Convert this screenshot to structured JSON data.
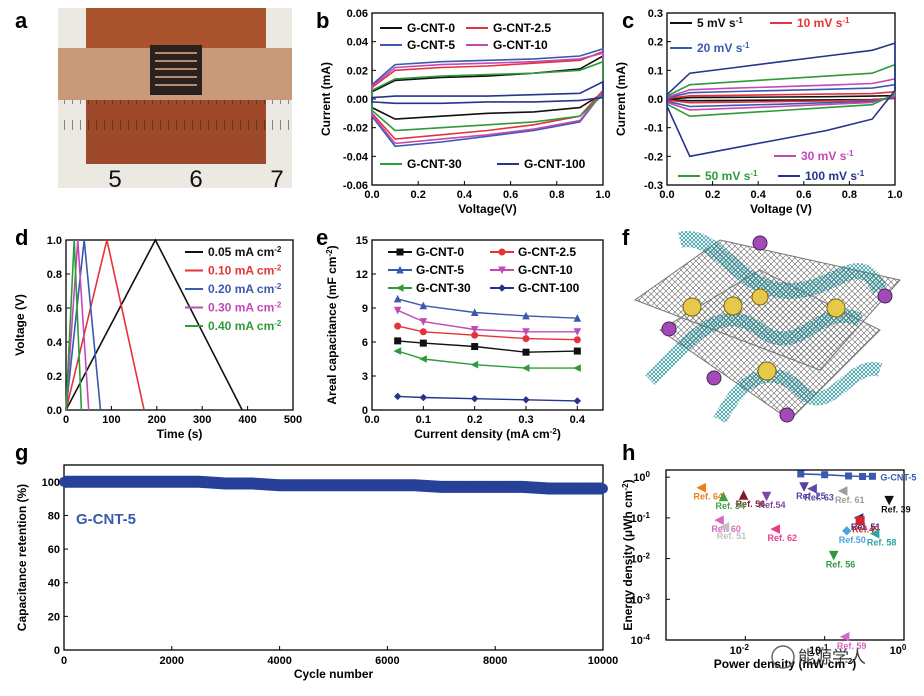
{
  "panel_labels": [
    "a",
    "b",
    "c",
    "d",
    "e",
    "f",
    "g",
    "h"
  ],
  "photo": {
    "ruler_labels": [
      "5",
      "6",
      "7"
    ]
  },
  "watermark": {
    "text": "能源学人"
  },
  "chart_data": [
    {
      "id": "b",
      "type": "line",
      "subtype": "cyclic-voltammetry",
      "xlabel": "Voltage(V)",
      "ylabel": "Current (mA)",
      "xlim": [
        0.0,
        1.0
      ],
      "ylim": [
        -0.06,
        0.06
      ],
      "xticks": [
        "0.0",
        "0.2",
        "0.4",
        "0.6",
        "0.8",
        "1.0"
      ],
      "yticks": [
        "-0.06",
        "-0.04",
        "-0.02",
        "0.00",
        "0.02",
        "0.04",
        "0.06"
      ],
      "legend": [
        {
          "name": "G-CNT-0",
          "color": "#111111"
        },
        {
          "name": "G-CNT-2.5",
          "color": "#e5333a"
        },
        {
          "name": "G-CNT-5",
          "color": "#3a59b0"
        },
        {
          "name": "G-CNT-10",
          "color": "#c449b6"
        },
        {
          "name": "G-CNT-30",
          "color": "#2e9b3a"
        },
        {
          "name": "G-CNT-100",
          "color": "#27338f"
        }
      ],
      "series": [
        {
          "name": "G-CNT-0",
          "color": "#111111",
          "upper": [
            0.005,
            0.013,
            0.015,
            0.016,
            0.018,
            0.021,
            0.03
          ],
          "lower": [
            -0.006,
            -0.014,
            -0.012,
            -0.01,
            -0.009,
            -0.006,
            0.004
          ]
        },
        {
          "name": "G-CNT-2.5",
          "color": "#e5333a",
          "upper": [
            0.008,
            0.02,
            0.022,
            0.023,
            0.025,
            0.027,
            0.033
          ],
          "lower": [
            -0.01,
            -0.028,
            -0.025,
            -0.022,
            -0.018,
            -0.012,
            0.006
          ]
        },
        {
          "name": "G-CNT-5",
          "color": "#3a59b0",
          "upper": [
            0.01,
            0.024,
            0.026,
            0.027,
            0.028,
            0.03,
            0.035
          ],
          "lower": [
            -0.012,
            -0.033,
            -0.03,
            -0.026,
            -0.022,
            -0.016,
            0.005
          ]
        },
        {
          "name": "G-CNT-10",
          "color": "#c449b6",
          "upper": [
            0.009,
            0.022,
            0.024,
            0.025,
            0.026,
            0.028,
            0.032
          ],
          "lower": [
            -0.011,
            -0.031,
            -0.028,
            -0.025,
            -0.021,
            -0.015,
            0.005
          ]
        },
        {
          "name": "G-CNT-30",
          "color": "#2e9b3a",
          "upper": [
            0.006,
            0.014,
            0.016,
            0.017,
            0.018,
            0.02,
            0.026
          ],
          "lower": [
            -0.008,
            -0.022,
            -0.02,
            -0.018,
            -0.016,
            -0.012,
            0.003
          ]
        },
        {
          "name": "G-CNT-100",
          "color": "#27338f",
          "upper": [
            0.001,
            0.002,
            0.002,
            0.002,
            0.003,
            0.004,
            0.012
          ],
          "lower": [
            -0.002,
            -0.003,
            -0.003,
            -0.002,
            -0.002,
            -0.001,
            0.001
          ]
        }
      ],
      "xpts": [
        0.0,
        0.1,
        0.3,
        0.5,
        0.7,
        0.9,
        1.0
      ]
    },
    {
      "id": "c",
      "type": "line",
      "subtype": "cyclic-voltammetry",
      "xlabel": "Voltage (V)",
      "ylabel": "Current (mA)",
      "xlim": [
        0.0,
        1.0
      ],
      "ylim": [
        -0.3,
        0.3
      ],
      "xticks": [
        "0.0",
        "0.2",
        "0.4",
        "0.6",
        "0.8",
        "1.0"
      ],
      "yticks": [
        "-0.3",
        "-0.2",
        "-0.1",
        "0.0",
        "0.1",
        "0.2",
        "0.3"
      ],
      "legend": [
        {
          "name": "5",
          "unit": "mV s",
          "sup": "-1",
          "color": "#111111"
        },
        {
          "name": "10",
          "unit": "mV s",
          "sup": "-1",
          "color": "#e5333a"
        },
        {
          "name": "20",
          "unit": "mV s",
          "sup": "-1",
          "color": "#3a59b0"
        },
        {
          "name": "30",
          "unit": "mV s",
          "sup": "-1",
          "color": "#c449b6"
        },
        {
          "name": "50",
          "unit": "mV s",
          "sup": "-1",
          "color": "#2e9b3a"
        },
        {
          "name": "100",
          "unit": "mV s",
          "sup": "-1",
          "color": "#27338f"
        }
      ],
      "series": [
        {
          "name": "5",
          "color": "#111111",
          "upper": [
            0.0,
            0.005,
            0.006,
            0.007,
            0.008,
            0.01,
            0.012
          ],
          "lower": [
            -0.002,
            -0.006,
            -0.005,
            -0.004,
            -0.003,
            -0.002,
            0.002
          ]
        },
        {
          "name": "10",
          "color": "#e5333a",
          "upper": [
            0.002,
            0.011,
            0.013,
            0.015,
            0.017,
            0.019,
            0.025
          ],
          "lower": [
            -0.004,
            -0.013,
            -0.011,
            -0.009,
            -0.007,
            -0.004,
            0.004
          ]
        },
        {
          "name": "20",
          "color": "#3a59b0",
          "upper": [
            0.004,
            0.022,
            0.026,
            0.03,
            0.034,
            0.038,
            0.05
          ],
          "lower": [
            -0.008,
            -0.026,
            -0.022,
            -0.018,
            -0.013,
            -0.008,
            0.008
          ]
        },
        {
          "name": "30",
          "color": "#c449b6",
          "upper": [
            0.006,
            0.032,
            0.038,
            0.043,
            0.048,
            0.054,
            0.07
          ],
          "lower": [
            -0.012,
            -0.038,
            -0.032,
            -0.026,
            -0.019,
            -0.012,
            0.012
          ]
        },
        {
          "name": "50",
          "color": "#2e9b3a",
          "upper": [
            0.01,
            0.05,
            0.06,
            0.07,
            0.08,
            0.09,
            0.12
          ],
          "lower": [
            -0.018,
            -0.06,
            -0.05,
            -0.04,
            -0.03,
            -0.02,
            0.018
          ]
        },
        {
          "name": "100",
          "color": "#27338f",
          "upper": [
            0.015,
            0.09,
            0.11,
            0.13,
            0.15,
            0.17,
            0.195
          ],
          "lower": [
            -0.025,
            -0.2,
            -0.17,
            -0.14,
            -0.11,
            -0.07,
            0.03
          ]
        }
      ],
      "xpts": [
        0.0,
        0.1,
        0.3,
        0.5,
        0.7,
        0.9,
        1.0
      ]
    },
    {
      "id": "d",
      "type": "line",
      "subtype": "galvanostatic-charge-discharge",
      "xlabel": "Time (s)",
      "ylabel": "Voltage (V)",
      "xlim": [
        0,
        500
      ],
      "ylim": [
        0.0,
        1.0
      ],
      "xticks": [
        "0",
        "100",
        "200",
        "300",
        "400",
        "500"
      ],
      "yticks": [
        "0.0",
        "0.2",
        "0.4",
        "0.6",
        "0.8",
        "1.0"
      ],
      "legend": [
        {
          "name": "0.05",
          "unit": "mA cm",
          "sup": "-2",
          "color": "#111111"
        },
        {
          "name": "0.10",
          "unit": "mA cm",
          "sup": "-2",
          "color": "#e5333a"
        },
        {
          "name": "0.20",
          "unit": "mA cm",
          "sup": "-2",
          "color": "#3a59b0"
        },
        {
          "name": "0.30",
          "unit": "mA cm",
          "sup": "-2",
          "color": "#c449b6"
        },
        {
          "name": "0.40",
          "unit": "mA cm",
          "sup": "-2",
          "color": "#2e9b3a"
        }
      ],
      "series": [
        {
          "name": "0.05",
          "color": "#111111",
          "x": [
            0,
            197,
            388
          ],
          "y": [
            0.0,
            1.0,
            0.0
          ]
        },
        {
          "name": "0.10",
          "color": "#e5333a",
          "x": [
            0,
            90,
            172
          ],
          "y": [
            0.0,
            1.0,
            0.0
          ]
        },
        {
          "name": "0.20",
          "color": "#3a59b0",
          "x": [
            0,
            40,
            76
          ],
          "y": [
            0.0,
            1.0,
            0.0
          ]
        },
        {
          "name": "0.30",
          "color": "#c449b6",
          "x": [
            0,
            26,
            50
          ],
          "y": [
            0.0,
            1.0,
            0.0
          ]
        },
        {
          "name": "0.40",
          "color": "#2e9b3a",
          "x": [
            0,
            18,
            34
          ],
          "y": [
            0.0,
            1.0,
            0.0
          ]
        }
      ]
    },
    {
      "id": "e",
      "type": "line",
      "xlabel": "Current density (mA cm",
      "xlabel_sup": "-2",
      "xlabel_end": ")",
      "ylabel": "Areal capacitance (mF cm",
      "ylabel_sup": "-2",
      "ylabel_end": ")",
      "xlim": [
        0.0,
        0.45
      ],
      "ylim": [
        0,
        15
      ],
      "xticks": [
        "0.0",
        "0.1",
        "0.2",
        "0.3",
        "0.4"
      ],
      "yticks": [
        "0",
        "3",
        "6",
        "9",
        "12",
        "15"
      ],
      "x": [
        0.05,
        0.1,
        0.2,
        0.3,
        0.4
      ],
      "series": [
        {
          "name": "G-CNT-0",
          "color": "#111111",
          "marker": "square",
          "values": [
            6.1,
            5.9,
            5.6,
            5.1,
            5.2
          ]
        },
        {
          "name": "G-CNT-2.5",
          "color": "#e5333a",
          "marker": "circle",
          "values": [
            7.4,
            6.9,
            6.6,
            6.3,
            6.2
          ]
        },
        {
          "name": "G-CNT-5",
          "color": "#3a59b0",
          "marker": "triangle-up",
          "values": [
            9.8,
            9.2,
            8.6,
            8.3,
            8.1
          ]
        },
        {
          "name": "G-CNT-10",
          "color": "#c449b6",
          "marker": "triangle-down",
          "values": [
            8.8,
            7.8,
            7.1,
            6.9,
            6.9
          ]
        },
        {
          "name": "G-CNT-30",
          "color": "#2e9b3a",
          "marker": "triangle-left",
          "values": [
            5.2,
            4.5,
            4.0,
            3.7,
            3.7
          ]
        },
        {
          "name": "G-CNT-100",
          "color": "#27338f",
          "marker": "diamond",
          "values": [
            1.2,
            1.1,
            1.0,
            0.9,
            0.8
          ]
        }
      ]
    },
    {
      "id": "g",
      "type": "scatter",
      "xlabel": "Cycle number",
      "ylabel": "Capacitance retention (%)",
      "xlim": [
        0,
        10000
      ],
      "ylim": [
        0,
        110
      ],
      "xticks": [
        "0",
        "2000",
        "4000",
        "6000",
        "8000",
        "10000"
      ],
      "yticks": [
        "0",
        "20",
        "40",
        "60",
        "80",
        "100"
      ],
      "series_label": "G-CNT-5",
      "series": [
        {
          "name": "G-CNT-5",
          "color": "#27419a",
          "x": [
            0,
            500,
            1000,
            1500,
            2000,
            2500,
            3000,
            3500,
            4000,
            4500,
            5000,
            5500,
            6000,
            6500,
            7000,
            7500,
            8000,
            8500,
            9000,
            9500,
            10000
          ],
          "values": [
            100,
            100,
            100,
            100,
            100,
            100,
            99,
            99,
            98,
            98,
            98,
            98,
            98,
            98,
            97,
            97,
            97,
            97,
            96,
            96,
            96
          ]
        }
      ]
    },
    {
      "id": "h",
      "type": "scatter",
      "subtype": "ragone",
      "xlabel": "Power density (mW cm",
      "xlabel_sup": "-2",
      "xlabel_end": ")",
      "ylabel": "Energy density (μWh cm",
      "ylabel_sup": "-2",
      "ylabel_end": ")",
      "xscale": "log",
      "yscale": "log",
      "xlim": [
        0.001,
        1.0
      ],
      "ylim": [
        0.0001,
        1.5
      ],
      "xticks": [
        {
          "base": "10",
          "exp": "-2",
          "v": 0.01
        },
        {
          "base": "10",
          "exp": "-1",
          "v": 0.1
        },
        {
          "base": "10",
          "exp": "0",
          "v": 1
        }
      ],
      "yticks": [
        {
          "base": "10",
          "exp": "0",
          "v": 1
        },
        {
          "base": "10",
          "exp": "-1",
          "v": 0.1
        },
        {
          "base": "10",
          "exp": "-2",
          "v": 0.01
        },
        {
          "base": "10",
          "exp": "-3",
          "v": 0.001
        },
        {
          "base": "10",
          "exp": "-4",
          "v": 0.0001
        }
      ],
      "line_series": {
        "name": "G-CNT-5",
        "color": "#3a59b0",
        "x": [
          0.05,
          0.1,
          0.2,
          0.3,
          0.4
        ],
        "y": [
          1.2,
          1.15,
          1.07,
          1.04,
          1.05
        ]
      },
      "refs": [
        {
          "label": "Ref. 64",
          "x": 0.0028,
          "y": 0.55,
          "color": "#ef7d1a",
          "marker": "triangle-left"
        },
        {
          "label": "Ref. 56",
          "x": 0.0095,
          "y": 0.36,
          "color": "#7b1e22",
          "marker": "triangle-up"
        },
        {
          "label": "Ref. 34",
          "x": 0.0053,
          "y": 0.33,
          "color": "#43a047",
          "marker": "triangle-up"
        },
        {
          "label": "Ref. 25",
          "x": 0.055,
          "y": 0.58,
          "color": "#5b3fa0",
          "marker": "triangle-down"
        },
        {
          "label": "Ref.54",
          "x": 0.0185,
          "y": 0.34,
          "color": "#7d4aa0",
          "marker": "triangle-down"
        },
        {
          "label": "Ref. 63",
          "x": 0.07,
          "y": 0.52,
          "color": "#5e45a8",
          "marker": "triangle-left"
        },
        {
          "label": "Ref. 61",
          "x": 0.17,
          "y": 0.46,
          "color": "#9d9d9d",
          "marker": "triangle-left"
        },
        {
          "label": "Ref. 39",
          "x": 0.65,
          "y": 0.27,
          "color": "#111111",
          "marker": "triangle-down"
        },
        {
          "label": "Ref. 60",
          "x": 0.0047,
          "y": 0.088,
          "color": "#d667c2",
          "marker": "triangle-left"
        },
        {
          "label": "Ref. 51",
          "x": 0.27,
          "y": 0.1,
          "color": "#2a2f8c",
          "marker": "triangle-left"
        },
        {
          "label": "Ref.49",
          "x": 0.28,
          "y": 0.085,
          "color": "#d0262e",
          "marker": "square"
        },
        {
          "label": "Ref. 51",
          "x": 0.0055,
          "y": 0.06,
          "color": "#c0c0c0",
          "marker": "triangle-left"
        },
        {
          "label": "Ref. 62",
          "x": 0.024,
          "y": 0.053,
          "color": "#e83e8c",
          "marker": "triangle-left"
        },
        {
          "label": "Ref.50",
          "x": 0.19,
          "y": 0.048,
          "color": "#48a5e0",
          "marker": "diamond"
        },
        {
          "label": "Ref. 58",
          "x": 0.43,
          "y": 0.041,
          "color": "#2aa6a6",
          "marker": "triangle-left"
        },
        {
          "label": "Ref. 56",
          "x": 0.13,
          "y": 0.012,
          "color": "#2e9b3a",
          "marker": "triangle-down"
        },
        {
          "label": "Ref. 59",
          "x": 0.18,
          "y": 0.00012,
          "color": "#d667c2",
          "marker": "triangle-left"
        }
      ]
    }
  ]
}
